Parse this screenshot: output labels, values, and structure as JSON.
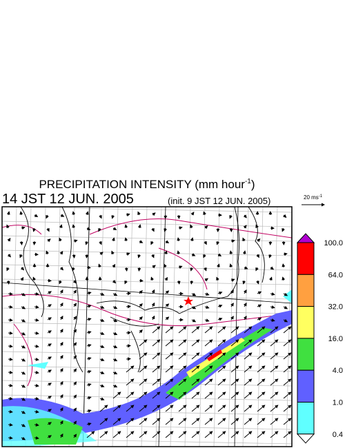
{
  "header": {
    "title": "PRECIPITATION INTENSITY (mm hour",
    "title_sup": "-1",
    "title_end": ")",
    "time": "14 JST 12 JUN. 2005",
    "init": "(init. 9 JST 12 JUN. 2005)"
  },
  "vector_scale": {
    "label": "20 ms",
    "label_sup": "-1"
  },
  "colorbar": {
    "labels": [
      "100.0",
      "64.0",
      "32.0",
      "16.0",
      "4.0",
      "1.0",
      "0.4"
    ],
    "colors": [
      "#ff0000",
      "#ffa040",
      "#ffff60",
      "#40e040",
      "#6060ff",
      "#60ffff"
    ],
    "over_color": "#b000d0",
    "under_color": "#ffffff"
  }
}
